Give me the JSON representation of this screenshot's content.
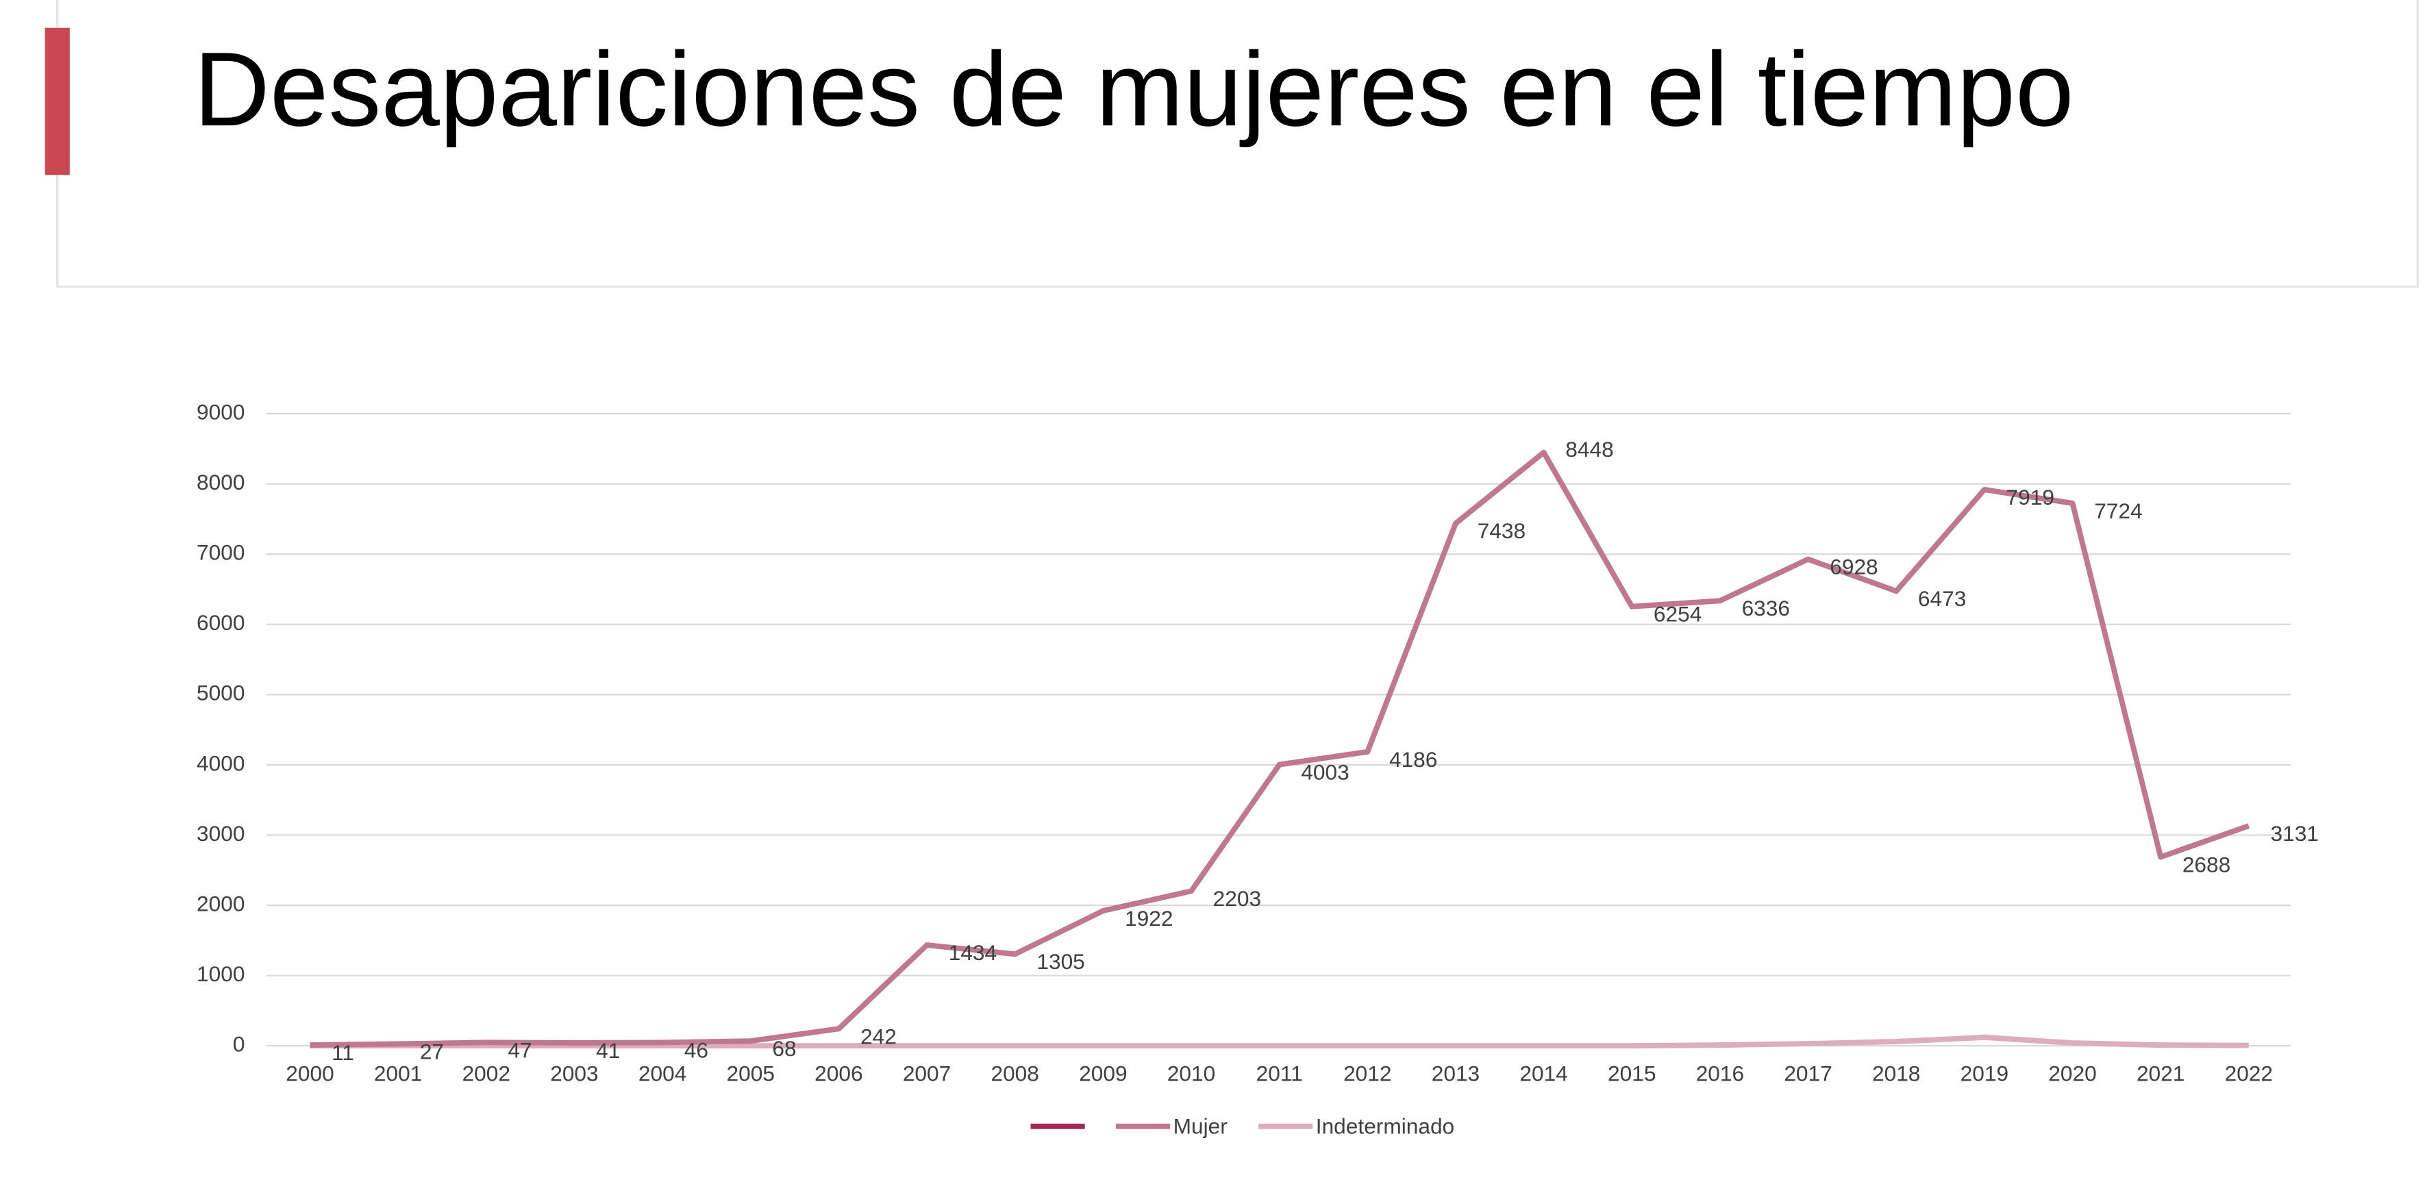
{
  "chart_data": {
    "type": "line",
    "title": "Desapariciones de mujeres  en el tiempo",
    "categories": [
      "2000",
      "2001",
      "2002",
      "2003",
      "2004",
      "2005",
      "2006",
      "2007",
      "2008",
      "2009",
      "2010",
      "2011",
      "2012",
      "2013",
      "2014",
      "2015",
      "2016",
      "2017",
      "2018",
      "2019",
      "2020",
      "2021",
      "2022"
    ],
    "series": [
      {
        "color": "#9e2a55"
      },
      {
        "name": "Mujer",
        "color": "#c07890",
        "values": [
          11,
          27,
          47,
          41,
          46,
          68,
          242,
          1434,
          1305,
          1922,
          2203,
          4003,
          4186,
          7438,
          8448,
          6254,
          6336,
          6928,
          6473,
          7919,
          7724,
          2688,
          3131
        ]
      },
      {
        "name": "Indeterminado",
        "color": "#dcadbd",
        "values": [
          0,
          0,
          0,
          0,
          0,
          0,
          0,
          0,
          0,
          0,
          0,
          0,
          0,
          0,
          0,
          0,
          10,
          30,
          60,
          120,
          40,
          10,
          5
        ]
      }
    ],
    "ylim": [
      0,
      9000
    ],
    "yticks": [
      0,
      1000,
      2000,
      3000,
      4000,
      5000,
      6000,
      7000,
      8000,
      9000
    ],
    "grid": true,
    "data_labels_series": "Mujer",
    "legend": "bottom"
  }
}
